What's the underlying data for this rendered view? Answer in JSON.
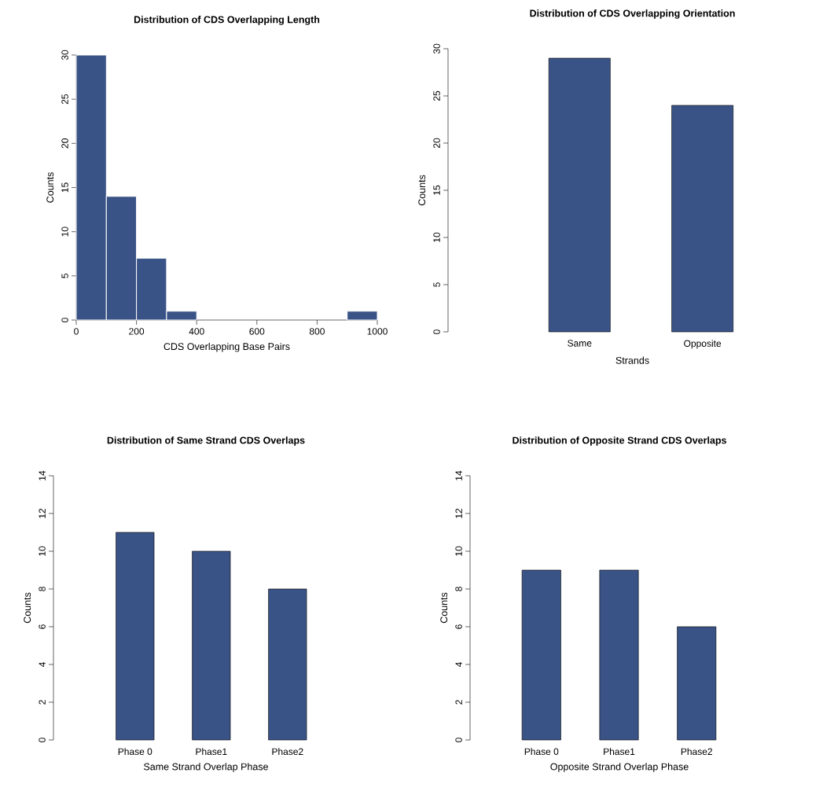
{
  "chart_data": [
    {
      "type": "histogram",
      "title": "Distribution of CDS Overlapping Length",
      "xlabel": "CDS Overlapping Base Pairs",
      "ylabel": "Counts",
      "color": "#3a5387",
      "bins": [
        0,
        100,
        200,
        300,
        400,
        500,
        600,
        700,
        800,
        900,
        1000
      ],
      "values": [
        30,
        14,
        7,
        1,
        0,
        0,
        0,
        0,
        0,
        1
      ],
      "xlim": [
        0,
        1000
      ],
      "xticks": [
        0,
        200,
        400,
        600,
        800,
        1000
      ],
      "ylim": [
        0,
        30
      ],
      "yticks": [
        0,
        5,
        10,
        15,
        20,
        25,
        30
      ]
    },
    {
      "type": "bar",
      "title": "Distribution of CDS Overlapping Orientation",
      "xlabel": "Strands",
      "ylabel": "Counts",
      "color": "#3a5387",
      "categories": [
        "Same",
        "Opposite"
      ],
      "values": [
        29,
        24
      ],
      "ylim": [
        0,
        30
      ],
      "yticks": [
        0,
        5,
        10,
        15,
        20,
        25,
        30
      ]
    },
    {
      "type": "bar",
      "title": "Distribution of Same Strand CDS Overlaps",
      "xlabel": "Same Strand Overlap Phase",
      "ylabel": "Counts",
      "color": "#3a5387",
      "categories": [
        "Phase 0",
        "Phase1",
        "Phase2"
      ],
      "values": [
        11,
        10,
        8
      ],
      "ylim": [
        0,
        14
      ],
      "yticks": [
        0,
        2,
        4,
        6,
        8,
        10,
        12,
        14
      ]
    },
    {
      "type": "bar",
      "title": "Distribution of Opposite Strand CDS Overlaps",
      "xlabel": "Opposite Strand Overlap Phase",
      "ylabel": "Counts",
      "color": "#3a5387",
      "categories": [
        "Phase 0",
        "Phase1",
        "Phase2"
      ],
      "values": [
        9,
        9,
        6
      ],
      "ylim": [
        0,
        14
      ],
      "yticks": [
        0,
        2,
        4,
        6,
        8,
        10,
        12,
        14
      ]
    }
  ]
}
